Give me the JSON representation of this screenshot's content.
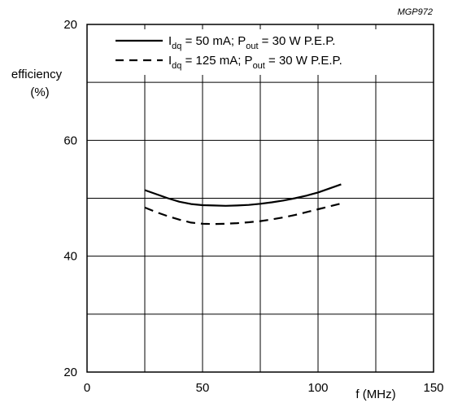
{
  "figure_id": "MGP972",
  "chart_data": {
    "type": "line",
    "xlabel": "f (MHz)",
    "ylabel": "efficiency",
    "ylabel_unit": "(%)",
    "xlim": [
      0,
      150
    ],
    "ylim": [
      20,
      80
    ],
    "xticks": [
      0,
      50,
      100,
      150
    ],
    "xtick_labels": [
      "0",
      "50",
      "100",
      "150"
    ],
    "yticks": [
      20,
      40,
      60
    ],
    "ytick_labels": [
      "20",
      "40",
      "60"
    ],
    "top_left_label": "20",
    "grid": true,
    "grid_x": [
      25,
      50,
      75,
      100,
      125
    ],
    "grid_y": [
      30,
      40,
      50,
      60,
      70
    ],
    "legend": {
      "placement": "top",
      "entries": [
        {
          "line_style": "solid",
          "prefix": "I",
          "prefix_sub": "dq",
          "middle": " =   50 mA; P",
          "middle_sub": "out",
          "suffix": " = 30 W P.E.P."
        },
        {
          "line_style": "dashed",
          "prefix": "I",
          "prefix_sub": "dq",
          "middle": " = 125 mA; P",
          "middle_sub": "out",
          "suffix": " = 30 W P.E.P."
        }
      ]
    },
    "series": [
      {
        "line_style": "solid",
        "x": [
          25,
          30,
          35,
          40,
          45,
          50,
          55,
          60,
          65,
          70,
          75,
          80,
          85,
          90,
          95,
          100,
          105,
          110
        ],
        "y": [
          51.4,
          50.7,
          50.0,
          49.4,
          49.0,
          48.8,
          48.75,
          48.7,
          48.75,
          48.85,
          49.05,
          49.3,
          49.6,
          50.0,
          50.45,
          51.0,
          51.7,
          52.4
        ]
      },
      {
        "line_style": "dashed",
        "x": [
          25,
          30,
          35,
          40,
          45,
          50,
          55,
          60,
          65,
          70,
          75,
          80,
          85,
          90,
          95,
          100,
          105,
          110
        ],
        "y": [
          48.4,
          47.6,
          46.9,
          46.3,
          45.8,
          45.6,
          45.55,
          45.6,
          45.7,
          45.85,
          46.05,
          46.35,
          46.7,
          47.1,
          47.6,
          48.1,
          48.6,
          49.1
        ]
      }
    ]
  }
}
